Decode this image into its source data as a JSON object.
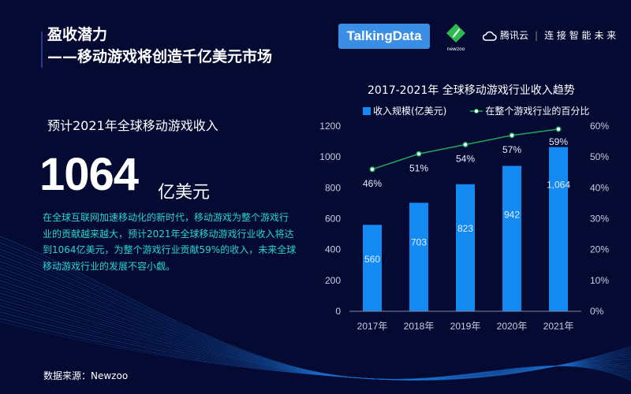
{
  "header": {
    "title_line1": "盈收潜力",
    "title_line2": "——移动游戏将创造千亿美元市场"
  },
  "logos": {
    "talkingdata": "TalkingData",
    "newzoo": "newzoo",
    "tencent_cloud": "腾讯云",
    "tencent_slogan": "连 接 智 能 未 来"
  },
  "left": {
    "subtitle": "预计2021年全球移动游戏收入",
    "big_number": "1064",
    "big_unit": "亿美元",
    "paragraph": "在全球互联网加速移动化的新时代，移动游戏为整个游戏行业的贡献越来越大，预计2021年全球移动游戏行业收入将达到1064亿美元，为整个游戏行业贡献59%的收入，未来全球移动游戏行业的发展不容小觑。",
    "source": "数据来源：Newzoo"
  },
  "chart_data": {
    "type": "bar",
    "title": "2017-2021年  全球移动游戏行业收入趋势",
    "categories": [
      "2017年",
      "2018年",
      "2019年",
      "2020年",
      "2021年"
    ],
    "series": [
      {
        "name": "收入规模(亿美元)",
        "type": "bar",
        "axis": "left",
        "values": [
          560,
          703,
          823,
          942,
          1064
        ],
        "labels": [
          "560",
          "703",
          "823",
          "942",
          "1,064"
        ],
        "color": "#1389f2"
      },
      {
        "name": "在整个游戏行业的百分比",
        "type": "line",
        "axis": "right",
        "values": [
          46,
          51,
          54,
          57,
          59
        ],
        "labels": [
          "46%",
          "51%",
          "54%",
          "57%",
          "59%"
        ],
        "color": "#1fa85a"
      }
    ],
    "ylim": [
      0,
      1200
    ],
    "yticks": [
      "0",
      "200",
      "400",
      "600",
      "800",
      "1000",
      "1200"
    ],
    "y2lim": [
      0,
      60
    ],
    "y2ticks": [
      "0%",
      "10%",
      "20%",
      "30%",
      "40%",
      "50%",
      "60%"
    ],
    "legend": "top",
    "grid": false
  }
}
